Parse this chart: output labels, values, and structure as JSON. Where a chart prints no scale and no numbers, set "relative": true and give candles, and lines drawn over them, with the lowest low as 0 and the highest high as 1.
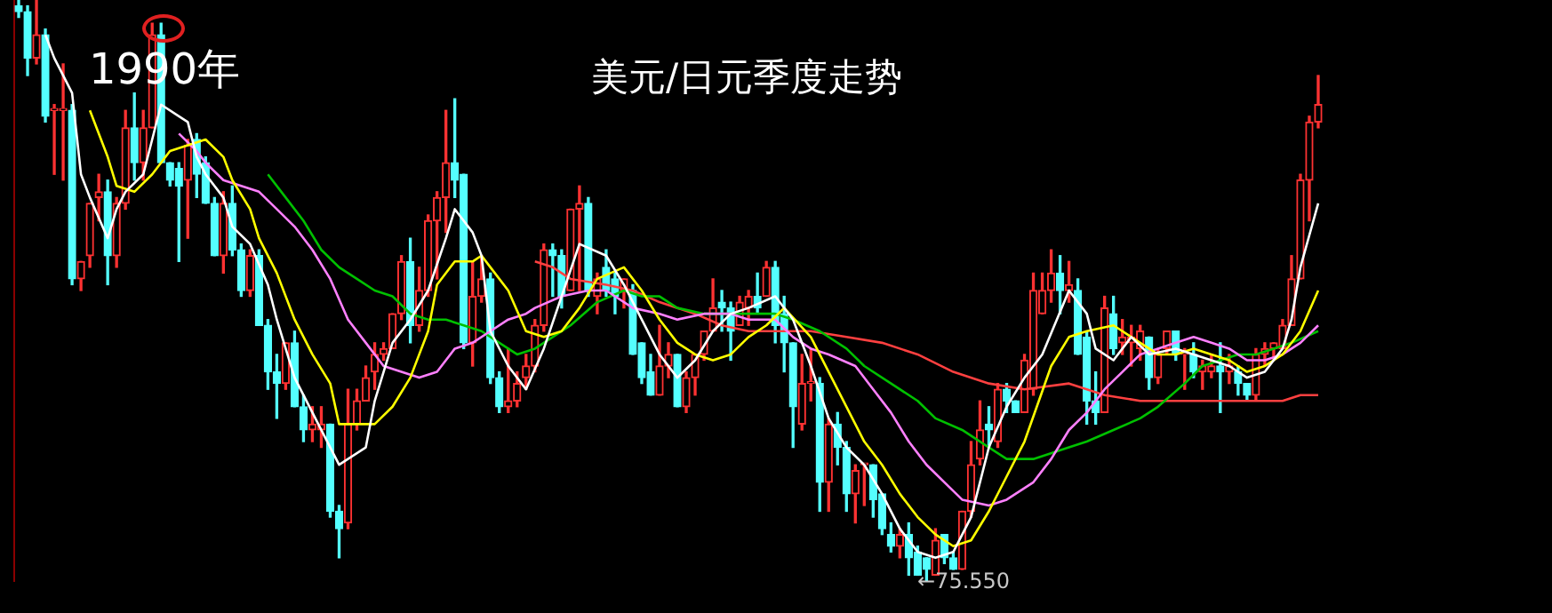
{
  "chart_data": {
    "type": "candlestick",
    "title": "美元/日元季度走势",
    "relative": true,
    "annotations": [
      "1990年",
      "←75.550"
    ],
    "categories": [
      null,
      null,
      null,
      null,
      null,
      null,
      null,
      null,
      null,
      null,
      null,
      null,
      null,
      null,
      null,
      null,
      null,
      null,
      null,
      null,
      null,
      null,
      null,
      null,
      null,
      null,
      null,
      null,
      null,
      null,
      null,
      null,
      null,
      null,
      null,
      null,
      null,
      null,
      null,
      null,
      null,
      null,
      null,
      null,
      null,
      null,
      null,
      null,
      null,
      null,
      null,
      null,
      null,
      null,
      null,
      null,
      null,
      null,
      null,
      null,
      null,
      null,
      null,
      null,
      null,
      null,
      null,
      null,
      null,
      null,
      null,
      null,
      null,
      null,
      null,
      null,
      null,
      null,
      null,
      null,
      null,
      null,
      null,
      null,
      null,
      null,
      null,
      null,
      null,
      null,
      null,
      null,
      null,
      null,
      null,
      null,
      null,
      null,
      null,
      null,
      null,
      null,
      null,
      null,
      null,
      null,
      null,
      null,
      null,
      null,
      null,
      null,
      null,
      null,
      null,
      null,
      null,
      null,
      null,
      null,
      null,
      null,
      null,
      null,
      null,
      null,
      null,
      null,
      null,
      null,
      null,
      null,
      null,
      null,
      null,
      null,
      null,
      null,
      null,
      null,
      null,
      null,
      null,
      null,
      null,
      null,
      null
    ],
    "ohlc": [
      [
        0.99,
        1.0,
        0.97,
        0.98
      ],
      [
        0.98,
        0.99,
        0.87,
        0.9
      ],
      [
        0.9,
        1.0,
        0.89,
        0.94
      ],
      [
        0.94,
        0.95,
        0.79,
        0.8
      ],
      [
        0.81,
        0.82,
        0.7,
        0.81
      ],
      [
        0.81,
        0.89,
        0.69,
        0.81
      ],
      [
        0.81,
        0.82,
        0.51,
        0.52
      ],
      [
        0.52,
        0.55,
        0.5,
        0.55
      ],
      [
        0.56,
        0.65,
        0.54,
        0.65
      ],
      [
        0.66,
        0.7,
        0.62,
        0.67
      ],
      [
        0.67,
        0.69,
        0.51,
        0.56
      ],
      [
        0.56,
        0.66,
        0.54,
        0.65
      ],
      [
        0.65,
        0.81,
        0.64,
        0.78
      ],
      [
        0.78,
        0.84,
        0.69,
        0.72
      ],
      [
        0.72,
        0.81,
        0.69,
        0.78
      ],
      [
        0.78,
        0.96,
        0.78,
        0.94
      ],
      [
        0.94,
        0.96,
        0.72,
        0.72
      ],
      [
        0.72,
        0.72,
        0.68,
        0.69
      ],
      [
        0.71,
        0.72,
        0.55,
        0.68
      ],
      [
        0.69,
        0.76,
        0.59,
        0.75
      ],
      [
        0.76,
        0.77,
        0.66,
        0.7
      ],
      [
        0.72,
        0.73,
        0.65,
        0.65
      ],
      [
        0.65,
        0.66,
        0.56,
        0.56
      ],
      [
        0.56,
        0.67,
        0.53,
        0.65
      ],
      [
        0.65,
        0.68,
        0.56,
        0.57
      ],
      [
        0.57,
        0.58,
        0.49,
        0.5
      ],
      [
        0.5,
        0.57,
        0.49,
        0.56
      ],
      [
        0.56,
        0.57,
        0.44,
        0.44
      ],
      [
        0.44,
        0.45,
        0.33,
        0.36
      ],
      [
        0.36,
        0.39,
        0.28,
        0.34
      ],
      [
        0.34,
        0.41,
        0.33,
        0.41
      ],
      [
        0.41,
        0.43,
        0.3,
        0.3
      ],
      [
        0.3,
        0.32,
        0.24,
        0.26
      ],
      [
        0.26,
        0.3,
        0.24,
        0.27
      ],
      [
        0.26,
        0.3,
        0.23,
        0.27
      ],
      [
        0.27,
        0.27,
        0.11,
        0.12
      ],
      [
        0.12,
        0.13,
        0.04,
        0.09
      ],
      [
        0.1,
        0.33,
        0.09,
        0.27
      ],
      [
        0.27,
        0.33,
        0.26,
        0.31
      ],
      [
        0.31,
        0.37,
        0.31,
        0.35
      ],
      [
        0.36,
        0.41,
        0.33,
        0.39
      ],
      [
        0.39,
        0.41,
        0.38,
        0.4
      ],
      [
        0.4,
        0.46,
        0.4,
        0.46
      ],
      [
        0.46,
        0.56,
        0.45,
        0.55
      ],
      [
        0.55,
        0.59,
        0.41,
        0.44
      ],
      [
        0.44,
        0.54,
        0.43,
        0.5
      ],
      [
        0.5,
        0.63,
        0.49,
        0.62
      ],
      [
        0.62,
        0.67,
        0.52,
        0.66
      ],
      [
        0.66,
        0.81,
        0.6,
        0.72
      ],
      [
        0.72,
        0.83,
        0.66,
        0.69
      ],
      [
        0.7,
        0.7,
        0.4,
        0.41
      ],
      [
        0.41,
        0.55,
        0.37,
        0.49
      ],
      [
        0.49,
        0.56,
        0.48,
        0.52
      ],
      [
        0.52,
        0.53,
        0.34,
        0.35
      ],
      [
        0.35,
        0.36,
        0.29,
        0.3
      ],
      [
        0.3,
        0.4,
        0.29,
        0.31
      ],
      [
        0.31,
        0.36,
        0.3,
        0.34
      ],
      [
        0.35,
        0.39,
        0.33,
        0.37
      ],
      [
        0.37,
        0.45,
        0.36,
        0.44
      ],
      [
        0.44,
        0.58,
        0.43,
        0.57
      ],
      [
        0.57,
        0.58,
        0.49,
        0.56
      ],
      [
        0.56,
        0.57,
        0.47,
        0.49
      ],
      [
        0.5,
        0.64,
        0.5,
        0.64
      ],
      [
        0.64,
        0.68,
        0.5,
        0.65
      ],
      [
        0.65,
        0.66,
        0.49,
        0.5
      ],
      [
        0.49,
        0.53,
        0.46,
        0.52
      ],
      [
        0.54,
        0.57,
        0.49,
        0.5
      ],
      [
        0.52,
        0.53,
        0.46,
        0.49
      ],
      [
        0.5,
        0.52,
        0.47,
        0.52
      ],
      [
        0.5,
        0.51,
        0.39,
        0.39
      ],
      [
        0.41,
        0.41,
        0.34,
        0.35
      ],
      [
        0.36,
        0.39,
        0.32,
        0.32
      ],
      [
        0.32,
        0.44,
        0.32,
        0.37
      ],
      [
        0.37,
        0.41,
        0.35,
        0.39
      ],
      [
        0.39,
        0.39,
        0.3,
        0.3
      ],
      [
        0.3,
        0.36,
        0.29,
        0.35
      ],
      [
        0.35,
        0.39,
        0.32,
        0.39
      ],
      [
        0.39,
        0.43,
        0.38,
        0.43
      ],
      [
        0.43,
        0.52,
        0.43,
        0.47
      ],
      [
        0.48,
        0.5,
        0.43,
        0.47
      ],
      [
        0.47,
        0.48,
        0.38,
        0.43
      ],
      [
        0.44,
        0.49,
        0.44,
        0.48
      ],
      [
        0.47,
        0.5,
        0.44,
        0.49
      ],
      [
        0.49,
        0.53,
        0.46,
        0.47
      ],
      [
        0.49,
        0.55,
        0.49,
        0.54
      ],
      [
        0.54,
        0.55,
        0.41,
        0.44
      ],
      [
        0.46,
        0.49,
        0.36,
        0.41
      ],
      [
        0.41,
        0.41,
        0.23,
        0.3
      ],
      [
        0.27,
        0.39,
        0.26,
        0.34
      ],
      [
        0.34,
        0.4,
        0.31,
        0.34
      ],
      [
        0.34,
        0.35,
        0.12,
        0.17
      ],
      [
        0.17,
        0.28,
        0.12,
        0.27
      ],
      [
        0.27,
        0.29,
        0.2,
        0.23
      ],
      [
        0.23,
        0.24,
        0.12,
        0.15
      ],
      [
        0.15,
        0.2,
        0.1,
        0.19
      ],
      [
        0.2,
        0.2,
        0.13,
        0.2
      ],
      [
        0.2,
        0.2,
        0.11,
        0.14
      ],
      [
        0.15,
        0.15,
        0.08,
        0.09
      ],
      [
        0.08,
        0.1,
        0.05,
        0.06
      ],
      [
        0.06,
        0.09,
        0.04,
        0.08
      ],
      [
        0.08,
        0.1,
        0.01,
        0.04
      ],
      [
        0.05,
        0.06,
        0.01,
        0.01
      ],
      [
        0.04,
        0.04,
        0.0,
        0.02
      ],
      [
        0.01,
        0.09,
        0.01,
        0.07
      ],
      [
        0.08,
        0.08,
        0.03,
        0.04
      ],
      [
        0.04,
        0.05,
        0.02,
        0.02
      ],
      [
        0.02,
        0.12,
        0.02,
        0.12
      ],
      [
        0.12,
        0.24,
        0.11,
        0.2
      ],
      [
        0.21,
        0.31,
        0.2,
        0.26
      ],
      [
        0.27,
        0.3,
        0.23,
        0.26
      ],
      [
        0.24,
        0.34,
        0.23,
        0.33
      ],
      [
        0.33,
        0.34,
        0.29,
        0.31
      ],
      [
        0.31,
        0.31,
        0.29,
        0.29
      ],
      [
        0.29,
        0.39,
        0.29,
        0.38
      ],
      [
        0.33,
        0.53,
        0.32,
        0.5
      ],
      [
        0.46,
        0.53,
        0.46,
        0.5
      ],
      [
        0.5,
        0.57,
        0.48,
        0.53
      ],
      [
        0.53,
        0.56,
        0.46,
        0.5
      ],
      [
        0.5,
        0.55,
        0.48,
        0.51
      ],
      [
        0.5,
        0.52,
        0.39,
        0.39
      ],
      [
        0.42,
        0.43,
        0.27,
        0.31
      ],
      [
        0.31,
        0.36,
        0.27,
        0.29
      ],
      [
        0.29,
        0.49,
        0.29,
        0.47
      ],
      [
        0.46,
        0.49,
        0.39,
        0.4
      ],
      [
        0.41,
        0.45,
        0.39,
        0.42
      ],
      [
        0.41,
        0.44,
        0.37,
        0.42
      ],
      [
        0.4,
        0.44,
        0.38,
        0.43
      ],
      [
        0.42,
        0.42,
        0.33,
        0.35
      ],
      [
        0.35,
        0.4,
        0.34,
        0.39
      ],
      [
        0.4,
        0.43,
        0.39,
        0.43
      ],
      [
        0.43,
        0.43,
        0.38,
        0.39
      ],
      [
        0.39,
        0.4,
        0.33,
        0.39
      ],
      [
        0.39,
        0.41,
        0.35,
        0.36
      ],
      [
        0.36,
        0.38,
        0.33,
        0.37
      ],
      [
        0.36,
        0.39,
        0.35,
        0.37
      ],
      [
        0.37,
        0.41,
        0.29,
        0.36
      ],
      [
        0.36,
        0.39,
        0.34,
        0.37
      ],
      [
        0.36,
        0.37,
        0.32,
        0.34
      ],
      [
        0.34,
        0.34,
        0.31,
        0.32
      ],
      [
        0.32,
        0.4,
        0.31,
        0.39
      ],
      [
        0.39,
        0.41,
        0.37,
        0.4
      ],
      [
        0.4,
        0.41,
        0.38,
        0.41
      ],
      [
        0.4,
        0.45,
        0.4,
        0.44
      ],
      [
        0.44,
        0.56,
        0.44,
        0.52
      ],
      [
        0.52,
        0.7,
        0.52,
        0.69
      ],
      [
        0.69,
        0.8,
        0.62,
        0.79
      ],
      [
        0.79,
        0.87,
        0.78,
        0.82
      ]
    ],
    "series": [
      {
        "type": "line",
        "color": "#ffffff",
        "values": [
          null,
          null,
          null,
          0.94,
          0.9,
          null,
          0.84,
          0.7,
          0.66,
          null,
          0.59,
          0.64,
          0.67,
          null,
          0.7,
          0.76,
          0.82,
          null,
          0.8,
          0.79,
          0.73,
          0.7,
          null,
          0.66,
          0.61,
          null,
          0.58,
          null,
          0.51,
          0.45,
          null,
          0.35,
          null,
          0.29,
          null,
          null,
          0.2,
          null,
          null,
          0.23,
          0.31,
          null,
          0.41,
          null,
          0.45,
          null,
          0.5,
          null,
          0.59,
          0.64,
          null,
          0.6,
          0.56,
          0.43,
          null,
          0.37,
          null,
          0.33,
          null,
          0.4,
          null,
          0.49,
          null,
          0.58,
          null,
          null,
          0.56,
          null,
          0.51,
          null,
          0.45,
          null,
          0.39,
          null,
          0.35,
          null,
          0.38,
          null,
          0.43,
          null,
          0.46,
          null,
          0.47,
          null,
          null,
          0.49,
          null,
          0.45,
          null,
          0.37,
          null,
          0.28,
          null,
          0.23,
          null,
          0.2,
          null,
          0.15,
          null,
          0.09,
          null,
          0.05,
          null,
          0.04,
          null,
          0.05,
          null,
          0.11,
          null,
          0.23,
          null,
          0.3,
          null,
          0.35,
          null,
          0.39,
          null,
          null,
          0.5,
          null,
          0.46,
          0.4,
          null,
          0.38,
          null,
          0.42,
          null,
          0.39,
          null,
          null,
          0.4,
          null,
          0.39,
          null,
          0.38,
          null,
          0.37,
          null,
          0.35,
          null,
          0.36,
          null,
          0.4,
          0.45,
          0.54,
          null,
          0.65
        ]
      },
      {
        "type": "line",
        "color": "#ffff00",
        "values": [
          null,
          null,
          null,
          null,
          null,
          null,
          null,
          null,
          0.81,
          null,
          0.73,
          0.68,
          null,
          0.67,
          null,
          0.7,
          null,
          0.74,
          null,
          0.75,
          null,
          0.76,
          null,
          0.73,
          0.69,
          null,
          0.64,
          0.59,
          null,
          0.53,
          null,
          0.45,
          null,
          0.39,
          null,
          0.34,
          0.27,
          null,
          0.27,
          null,
          0.27,
          null,
          0.3,
          null,
          0.35,
          null,
          0.43,
          0.51,
          null,
          0.55,
          null,
          0.55,
          0.56,
          0.54,
          null,
          0.5,
          null,
          0.43,
          null,
          0.42,
          null,
          0.43,
          null,
          0.47,
          null,
          0.52,
          null,
          null,
          0.54,
          null,
          0.5,
          null,
          0.45,
          null,
          0.41,
          null,
          0.39,
          null,
          0.38,
          null,
          0.39,
          null,
          0.42,
          null,
          0.44,
          null,
          0.47,
          null,
          null,
          0.42,
          null,
          0.36,
          null,
          0.3,
          null,
          0.24,
          null,
          0.2,
          null,
          0.15,
          null,
          0.11,
          null,
          0.08,
          null,
          0.06,
          null,
          0.07,
          null,
          0.12,
          null,
          0.18,
          null,
          0.24,
          null,
          null,
          0.37,
          null,
          0.42,
          null,
          0.43,
          null,
          null,
          0.44,
          0.43,
          null,
          0.41,
          null,
          0.39,
          null,
          0.39,
          null,
          0.4,
          null,
          0.39,
          null,
          0.38,
          null,
          0.36,
          null,
          0.37,
          null,
          0.39,
          null,
          0.43,
          null,
          0.5
        ]
      },
      {
        "type": "line",
        "color": "#ff80ff",
        "values": [
          null,
          null,
          null,
          null,
          null,
          null,
          null,
          null,
          null,
          null,
          null,
          null,
          null,
          null,
          null,
          null,
          null,
          null,
          0.77,
          null,
          0.74,
          0.72,
          null,
          0.69,
          null,
          0.68,
          null,
          0.67,
          null,
          0.64,
          null,
          0.61,
          null,
          0.57,
          null,
          0.52,
          null,
          0.45,
          null,
          0.41,
          null,
          0.37,
          null,
          0.36,
          null,
          0.35,
          null,
          0.36,
          null,
          0.4,
          null,
          0.41,
          null,
          0.43,
          null,
          0.45,
          null,
          0.46,
          0.47,
          null,
          null,
          0.49,
          null,
          null,
          0.5,
          null,
          0.5,
          null,
          null,
          0.47,
          null,
          null,
          0.46,
          null,
          0.45,
          null,
          null,
          0.46,
          null,
          null,
          0.46,
          null,
          0.45,
          null,
          null,
          0.45,
          null,
          0.42,
          null,
          0.4,
          null,
          0.39,
          null,
          null,
          0.37,
          null,
          0.33,
          null,
          0.29,
          null,
          0.24,
          null,
          0.2,
          null,
          0.17,
          null,
          0.14,
          null,
          null,
          0.13,
          null,
          0.14,
          null,
          null,
          0.17,
          null,
          0.21,
          null,
          0.26,
          null,
          0.29,
          null,
          0.33,
          null,
          0.36,
          null,
          0.39,
          null,
          0.4,
          null,
          0.41,
          null,
          0.42,
          null,
          0.41,
          null,
          0.4,
          null,
          0.38,
          null,
          0.38,
          null,
          0.39,
          null,
          0.41,
          null,
          0.44
        ]
      },
      {
        "type": "line",
        "color": "#00c000",
        "values": [
          null,
          null,
          null,
          null,
          null,
          null,
          null,
          null,
          null,
          null,
          null,
          null,
          null,
          null,
          null,
          null,
          null,
          null,
          null,
          null,
          null,
          null,
          null,
          null,
          null,
          null,
          null,
          null,
          0.7,
          null,
          0.66,
          null,
          0.62,
          null,
          0.57,
          null,
          0.54,
          null,
          0.52,
          null,
          0.5,
          null,
          0.49,
          null,
          0.46,
          null,
          0.45,
          null,
          0.45,
          null,
          0.44,
          null,
          0.43,
          null,
          0.41,
          null,
          0.39,
          null,
          0.4,
          null,
          0.42,
          null,
          0.44,
          null,
          null,
          0.48,
          null,
          null,
          0.5,
          null,
          0.49,
          null,
          0.49,
          null,
          0.47,
          null,
          null,
          0.46,
          null,
          null,
          0.46,
          null,
          0.46,
          null,
          null,
          0.46,
          null,
          0.45,
          null,
          null,
          0.43,
          null,
          null,
          0.4,
          null,
          0.37,
          null,
          null,
          0.34,
          null,
          null,
          0.31,
          null,
          0.28,
          null,
          null,
          0.26,
          null,
          null,
          0.23,
          null,
          0.21,
          null,
          null,
          0.21,
          null,
          null,
          null,
          0.23,
          null,
          0.24,
          null,
          null,
          0.26,
          null,
          null,
          0.28,
          null,
          0.3,
          null,
          null,
          0.34,
          null,
          0.37,
          null,
          0.38,
          null,
          0.39,
          null,
          0.39,
          null,
          0.4,
          null,
          0.41,
          null,
          null,
          0.43
        ]
      },
      {
        "type": "line",
        "color": "#ff4040",
        "values": [
          null,
          null,
          null,
          null,
          null,
          null,
          null,
          null,
          null,
          null,
          null,
          null,
          null,
          null,
          null,
          null,
          null,
          null,
          null,
          null,
          null,
          null,
          null,
          null,
          null,
          null,
          null,
          null,
          null,
          null,
          null,
          null,
          null,
          null,
          null,
          null,
          null,
          null,
          null,
          null,
          null,
          null,
          null,
          null,
          null,
          null,
          null,
          null,
          null,
          null,
          null,
          null,
          null,
          null,
          null,
          null,
          null,
          null,
          0.55,
          null,
          0.54,
          null,
          0.52,
          null,
          null,
          null,
          0.51,
          null,
          null,
          0.5,
          null,
          null,
          0.48,
          null,
          null,
          null,
          0.46,
          null,
          null,
          0.44,
          null,
          null,
          0.43,
          null,
          null,
          null,
          0.43,
          null,
          null,
          0.43,
          null,
          null,
          null,
          0.42,
          null,
          null,
          null,
          0.41,
          null,
          null,
          null,
          0.39,
          null,
          null,
          null,
          0.36,
          null,
          null,
          null,
          0.34,
          null,
          null,
          null,
          0.33,
          null,
          null,
          null,
          null,
          0.34,
          null,
          null,
          null,
          0.32,
          null,
          null,
          null,
          0.31,
          null,
          null,
          null,
          0.31,
          null,
          null,
          null,
          0.31,
          null,
          null,
          null,
          0.31,
          null,
          null,
          null,
          0.31,
          null,
          0.32,
          null,
          0.32
        ]
      }
    ]
  }
}
